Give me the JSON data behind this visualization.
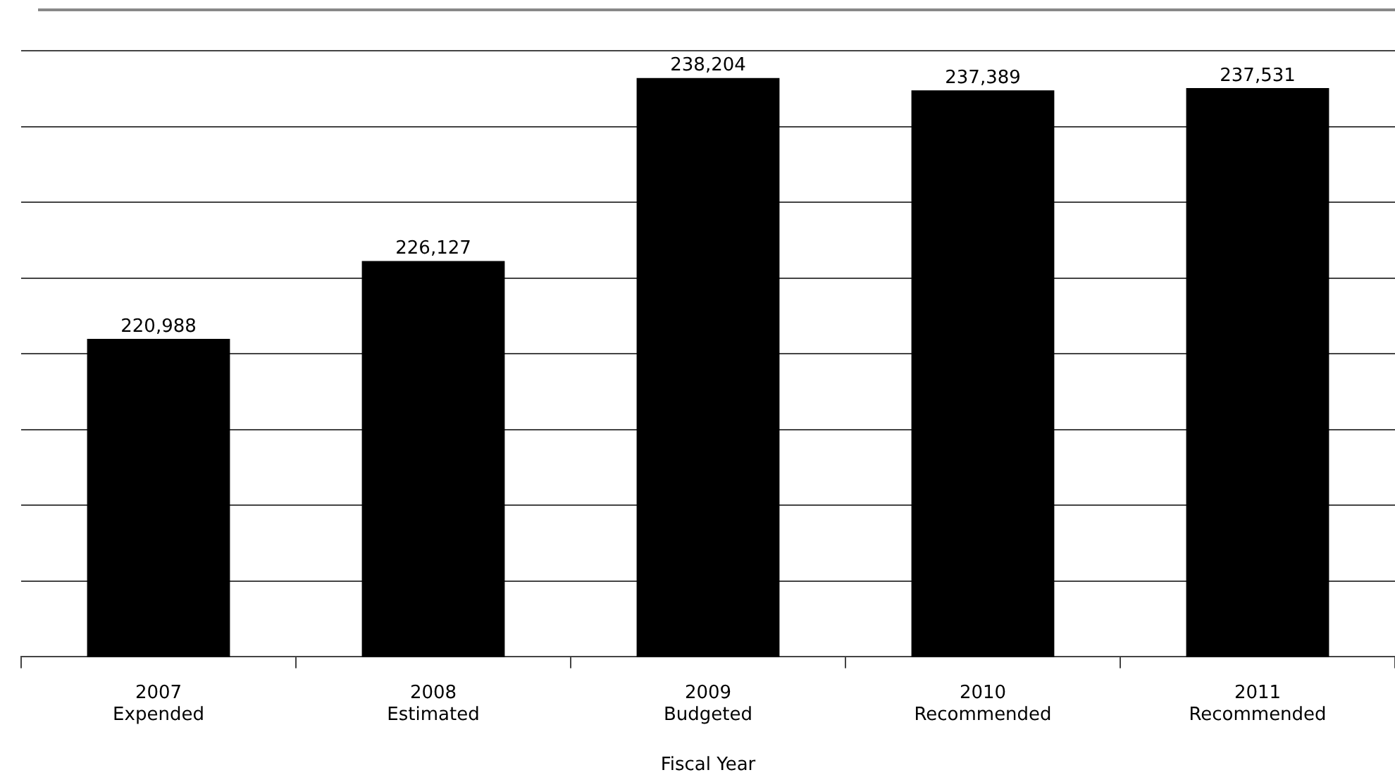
{
  "chart_data": {
    "type": "bar",
    "xlabel": "Fiscal Year",
    "categories": [
      "2007\nExpended",
      "2008\nEstimated",
      "2009\nBudgeted",
      "2010\nRecommended",
      "2011\nRecommended"
    ],
    "values": [
      220988,
      226127,
      238204,
      237389,
      237531
    ],
    "value_labels": [
      "220,988",
      "226,127",
      "238,204",
      "237,389",
      "237,531"
    ],
    "color": "#000000",
    "ylim": [
      200000,
      240000
    ],
    "yticks": [
      {
        "value": 200000,
        "label": null
      },
      {
        "value": 205000,
        "label": null
      },
      {
        "value": 210000,
        "label": null
      },
      {
        "value": 215000,
        "label": null
      },
      {
        "value": 220000,
        "label": null
      },
      {
        "value": 225000,
        "label": null
      },
      {
        "value": 230000,
        "label": null
      },
      {
        "value": 235000,
        "label": null
      },
      {
        "value": 240000,
        "label": null
      }
    ],
    "tick_labels": "x",
    "grid": "y",
    "legend": false
  }
}
